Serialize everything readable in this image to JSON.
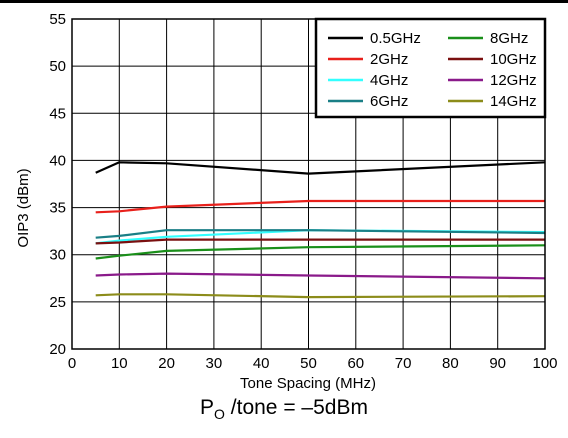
{
  "chart_data": {
    "type": "line",
    "xlabel": "Tone Spacing (MHz)",
    "ylabel": "OIP3 (dBm)",
    "xlim": [
      0,
      100
    ],
    "ylim": [
      20,
      55
    ],
    "xticks": [
      "0",
      "10",
      "20",
      "30",
      "40",
      "50",
      "60",
      "70",
      "80",
      "90",
      "100"
    ],
    "yticks": [
      "20",
      "25",
      "30",
      "35",
      "40",
      "45",
      "50",
      "55"
    ],
    "grid": true,
    "legend_position": "top-right",
    "series": [
      {
        "name": "0.5GHz",
        "color": "#000000",
        "x": [
          5,
          10,
          20,
          50,
          100
        ],
        "y": [
          38.7,
          39.8,
          39.7,
          38.6,
          39.8
        ]
      },
      {
        "name": "2GHz",
        "color": "#e8201b",
        "x": [
          5,
          10,
          20,
          50,
          100
        ],
        "y": [
          34.5,
          34.6,
          35.1,
          35.7,
          35.7
        ]
      },
      {
        "name": "4GHz",
        "color": "#33ffff",
        "x": [
          5,
          10,
          20,
          50,
          100
        ],
        "y": [
          31.2,
          31.5,
          31.9,
          32.6,
          32.4
        ]
      },
      {
        "name": "6GHz",
        "color": "#1a7f86",
        "x": [
          5,
          10,
          20,
          50,
          100
        ],
        "y": [
          31.8,
          32.0,
          32.6,
          32.6,
          32.3
        ]
      },
      {
        "name": "8GHz",
        "color": "#1a8f1a",
        "x": [
          5,
          10,
          20,
          50,
          100
        ],
        "y": [
          29.6,
          29.9,
          30.4,
          30.8,
          31.0
        ]
      },
      {
        "name": "10GHz",
        "color": "#7a1010",
        "x": [
          5,
          10,
          20,
          50,
          100
        ],
        "y": [
          31.2,
          31.3,
          31.6,
          31.6,
          31.6
        ]
      },
      {
        "name": "12GHz",
        "color": "#8a1a8a",
        "x": [
          5,
          10,
          20,
          50,
          100
        ],
        "y": [
          27.8,
          27.9,
          28.0,
          27.8,
          27.5
        ]
      },
      {
        "name": "14GHz",
        "color": "#8c8c1a",
        "x": [
          5,
          10,
          20,
          50,
          100
        ],
        "y": [
          25.7,
          25.8,
          25.8,
          25.5,
          25.6
        ]
      }
    ]
  },
  "caption": {
    "main": "P",
    "sub": "O",
    "rest": " /tone = –5dBm"
  }
}
